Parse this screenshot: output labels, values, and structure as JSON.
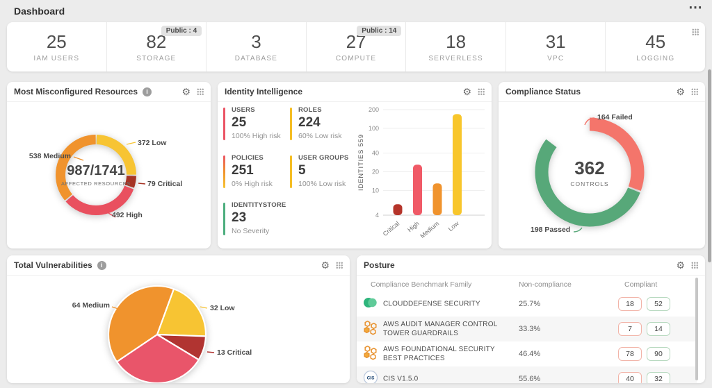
{
  "page": {
    "title": "Dashboard"
  },
  "icons": {
    "gear": "⚙",
    "info": "i",
    "ellipsis": "⋯"
  },
  "stats": {
    "items": [
      {
        "value": "25",
        "label": "IAM USERS"
      },
      {
        "value": "82",
        "label": "STORAGE",
        "badge": "Public : 4"
      },
      {
        "value": "3",
        "label": "DATABASE"
      },
      {
        "value": "27",
        "label": "COMPUTE",
        "badge": "Public : 14"
      },
      {
        "value": "18",
        "label": "SERVERLESS"
      },
      {
        "value": "31",
        "label": "VPC"
      },
      {
        "value": "45",
        "label": "LOGGING"
      }
    ]
  },
  "cards": {
    "misconfigured": {
      "title": "Most Misconfigured Resources",
      "center_value": "987/1741",
      "center_label": "AFFECTED RESOURCES",
      "labels": {
        "medium": "538 Medium",
        "low": "372 Low",
        "critical": "79 Critical",
        "high": "492 High"
      }
    },
    "identity": {
      "title": "Identity Intelligence",
      "stats": [
        {
          "label": "USERS",
          "value": "25",
          "sub": "100% High risk",
          "bar_color": "#EB5565"
        },
        {
          "label": "ROLES",
          "value": "224",
          "sub": "60% Low risk",
          "bar_color": "#F5BE25"
        },
        {
          "label": "POLICIES",
          "value": "251",
          "sub": "0% High risk",
          "bar_color": [
            "#EB5565",
            "#F0932D",
            "#F7C433"
          ]
        },
        {
          "label": "USER GROUPS",
          "value": "5",
          "sub": "100% Low risk",
          "bar_color": "#F5BE25"
        },
        {
          "label": "IDENTITYSTORE",
          "value": "23",
          "sub": "No Severity",
          "bar_color": "#4DAE7E"
        }
      ]
    },
    "compliance": {
      "title": "Compliance Status",
      "center_value": "362",
      "center_label": "CONTROLS",
      "labels": {
        "failed": "164 Failed",
        "passed": "198 Passed"
      }
    },
    "vulnerabilities": {
      "title": "Total Vulnerabilities",
      "labels": {
        "medium": "64 Medium",
        "low": "32 Low",
        "critical": "13 Critical"
      }
    },
    "posture": {
      "title": "Posture",
      "columns": [
        "Compliance Benchmark Family",
        "Non-compliance",
        "Compliant"
      ],
      "rows": [
        {
          "icon": "clouddefense",
          "name": "CLOUDDEFENSE SECURITY",
          "non_compliance": "25.7%",
          "non_compliant_count": "18",
          "compliant_count": "52"
        },
        {
          "icon": "aws",
          "name": "AWS AUDIT MANAGER CONTROL TOWER GUARDRAILS",
          "non_compliance": "33.3%",
          "non_compliant_count": "7",
          "compliant_count": "14"
        },
        {
          "icon": "aws",
          "name": "AWS FOUNDATIONAL SECURITY BEST PRACTICES",
          "non_compliance": "46.4%",
          "non_compliant_count": "78",
          "compliant_count": "90"
        },
        {
          "icon": "cis",
          "name": "CIS V1.5.0",
          "non_compliance": "55.6%",
          "non_compliant_count": "40",
          "compliant_count": "32"
        }
      ]
    }
  },
  "chart_data": [
    {
      "id": "most-misconfigured-resources",
      "type": "donut",
      "title": "Most Misconfigured Resources",
      "center_value": "987/1741",
      "center_label": "AFFECTED RESOURCES",
      "start_angle_deg": 0,
      "slices": [
        {
          "label": "Low",
          "value": 372,
          "color": "#F7C433"
        },
        {
          "label": "Critical",
          "value": 79,
          "color": "#A63324"
        },
        {
          "label": "High",
          "value": 492,
          "color": "#E9505F"
        },
        {
          "label": "Medium",
          "value": 538,
          "color": "#F0932D"
        }
      ]
    },
    {
      "id": "identity-intelligence-bars",
      "type": "bar",
      "ylabel": "IDENTITIES 559",
      "yscale": "log",
      "ylim": [
        4,
        200
      ],
      "yticks": [
        200,
        100,
        40,
        20,
        10,
        4
      ],
      "categories": [
        "Critical",
        "High",
        "Medium",
        "Low"
      ],
      "values": [
        6,
        26,
        13,
        170
      ],
      "colors": [
        "#B5342A",
        "#F05A67",
        "#F0932D",
        "#F8C62B"
      ]
    },
    {
      "id": "compliance-status-donut",
      "type": "donut",
      "center_value": "362",
      "center_label": "CONTROLS",
      "start_angle_deg": -52,
      "slices": [
        {
          "label": "Failed",
          "value": 164,
          "color": "#F4756B"
        },
        {
          "label": "Passed",
          "value": 198,
          "color": "#57A879"
        }
      ]
    },
    {
      "id": "total-vulnerabilities-pie",
      "type": "pie",
      "start_angle_deg": 20,
      "slices": [
        {
          "label": "Low",
          "value": 32,
          "color": "#F7C433"
        },
        {
          "label": "Critical",
          "value": 13,
          "color": "#B13431"
        },
        {
          "label": "High",
          "value": 51,
          "color": "#E9556A"
        },
        {
          "label": "Medium",
          "value": 64,
          "color": "#F0932D"
        }
      ]
    }
  ]
}
